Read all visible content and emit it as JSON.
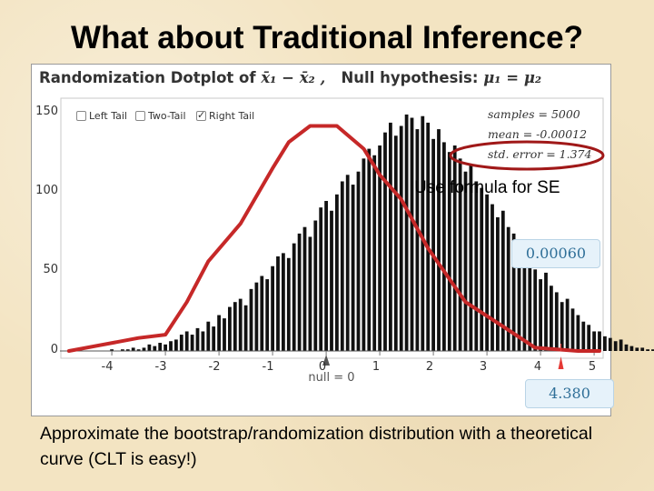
{
  "slide": {
    "title": "What about Traditional Inference?",
    "annotation": "Use formula for SE",
    "caption": "Approximate the bootstrap/randomization distribution with a theoretical curve (CLT is easy!)"
  },
  "applet": {
    "header_prefix": "Randomization Dotplot of ",
    "header_stat": "x̄₁ − x̄₂ ,",
    "header_null_label": "Null hypothesis:",
    "header_null_math": "μ₁ = μ₂",
    "tail_options": [
      {
        "label": "Left Tail",
        "checked": false
      },
      {
        "label": "Two-Tail",
        "checked": false
      },
      {
        "label": "Right Tail",
        "checked": true
      }
    ],
    "stats": {
      "samples": "samples = 5000",
      "mean": "mean = -0.00012",
      "std_error": "std. error = 1.374"
    },
    "tail_proportion": "0.00060",
    "observed_value": "4.380",
    "null_label": "null = 0"
  },
  "colors": {
    "curve": "#c62828",
    "bars": "#111111",
    "ellipse": "#a01818",
    "marker": "#e53935"
  },
  "chart_data": {
    "type": "bar",
    "title": "",
    "xlabel": "",
    "ylabel": "",
    "xlim": [
      -4.9,
      5.1
    ],
    "ylim": [
      0,
      155
    ],
    "x_ticks": [
      -4,
      -3,
      -2,
      -1,
      0,
      1,
      2,
      3,
      4,
      5
    ],
    "y_ticks": [
      0,
      50,
      100,
      150
    ],
    "bin_width": 0.1,
    "x_start": -4.8,
    "values": [
      0,
      0,
      0,
      0,
      0,
      0,
      0,
      0,
      1,
      0,
      1,
      1,
      2,
      1,
      2,
      4,
      3,
      5,
      4,
      6,
      7,
      10,
      12,
      10,
      14,
      12,
      18,
      15,
      22,
      20,
      27,
      30,
      32,
      28,
      38,
      42,
      46,
      44,
      52,
      58,
      60,
      57,
      66,
      72,
      76,
      70,
      80,
      88,
      92,
      86,
      96,
      104,
      108,
      102,
      110,
      118,
      124,
      120,
      126,
      134,
      140,
      132,
      138,
      145,
      143,
      136,
      144,
      140,
      130,
      136,
      128,
      122,
      126,
      118,
      110,
      114,
      104,
      100,
      96,
      90,
      82,
      86,
      76,
      72,
      64,
      62,
      54,
      50,
      44,
      48,
      40,
      36,
      30,
      32,
      26,
      22,
      18,
      16,
      12,
      12,
      9,
      8,
      6,
      7,
      4,
      3,
      2,
      2,
      1,
      1,
      0,
      0,
      0,
      0,
      0,
      0,
      0,
      0
    ],
    "curve_x": [
      -4.8,
      -3.5,
      -3.0,
      -2.6,
      -2.2,
      -1.6,
      -1.0,
      -0.7,
      -0.3,
      0.2,
      0.7,
      1.0,
      1.4,
      1.9,
      2.6,
      3.3,
      3.9,
      4.7,
      5.1
    ],
    "curve_y": [
      0,
      8,
      10,
      30,
      55,
      78,
      112,
      128,
      138,
      138,
      124,
      108,
      93,
      63,
      30,
      15,
      2,
      0,
      0
    ],
    "observed_x": 4.38
  }
}
